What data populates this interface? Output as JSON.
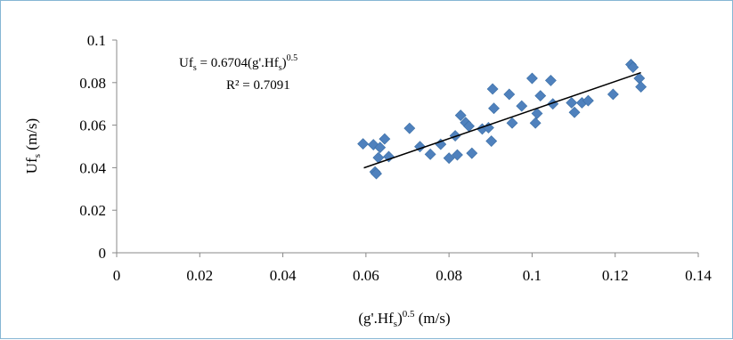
{
  "chart_data": {
    "type": "scatter",
    "title": "",
    "xlabel": "(g'.Hf",
    "xlabel_sub": "s",
    "xlabel_sup": "0.5",
    "xlabel_tail": " (m/s)",
    "ylabel": "Uf",
    "ylabel_sub": "s",
    "ylabel_tail": " (m/s)",
    "xlim": [
      0,
      0.14
    ],
    "ylim": [
      0,
      0.1
    ],
    "xticks": [
      "0",
      "0.02",
      "0.04",
      "0.06",
      "0.08",
      "0.1",
      "0.12",
      "0.14"
    ],
    "yticks": [
      "0",
      "0.02",
      "0.04",
      "0.06",
      "0.08",
      "0.1"
    ],
    "xtick_values": [
      0,
      0.02,
      0.04,
      0.06,
      0.08,
      0.1,
      0.12,
      0.14
    ],
    "ytick_values": [
      0,
      0.02,
      0.04,
      0.06,
      0.08,
      0.1
    ],
    "grid": false,
    "marker_color": "#4f81bd",
    "trendline_color": "#000000",
    "equation": {
      "prefix": "Uf",
      "sub1": "s",
      "middle": " = 0.6704(g'.Hf",
      "sub2": "s",
      "close": ")",
      "sup": "0.5"
    },
    "r_squared": "R² = 0.7091",
    "trendline": {
      "x": [
        0.0595,
        0.1262
      ],
      "y": [
        0.0399,
        0.0847
      ]
    },
    "series": [
      {
        "points": [
          [
            0.0593,
            0.0512
          ],
          [
            0.0618,
            0.0508
          ],
          [
            0.0622,
            0.038
          ],
          [
            0.0625,
            0.0372
          ],
          [
            0.063,
            0.0447
          ],
          [
            0.0634,
            0.0495
          ],
          [
            0.0645,
            0.0535
          ],
          [
            0.0655,
            0.0452
          ],
          [
            0.0705,
            0.0585
          ],
          [
            0.073,
            0.0499
          ],
          [
            0.0755,
            0.0463
          ],
          [
            0.078,
            0.051
          ],
          [
            0.08,
            0.0445
          ],
          [
            0.0815,
            0.055
          ],
          [
            0.082,
            0.046
          ],
          [
            0.0828,
            0.0646
          ],
          [
            0.084,
            0.0612
          ],
          [
            0.0848,
            0.0595
          ],
          [
            0.0855,
            0.0468
          ],
          [
            0.088,
            0.0582
          ],
          [
            0.0895,
            0.0588
          ],
          [
            0.0902,
            0.0525
          ],
          [
            0.0905,
            0.077
          ],
          [
            0.0908,
            0.0679
          ],
          [
            0.0945,
            0.0745
          ],
          [
            0.0952,
            0.061
          ],
          [
            0.0975,
            0.069
          ],
          [
            0.1,
            0.082
          ],
          [
            0.1008,
            0.061
          ],
          [
            0.1012,
            0.0655
          ],
          [
            0.102,
            0.0738
          ],
          [
            0.1045,
            0.081
          ],
          [
            0.105,
            0.07
          ],
          [
            0.1095,
            0.0705
          ],
          [
            0.1102,
            0.066
          ],
          [
            0.112,
            0.0705
          ],
          [
            0.1135,
            0.0715
          ],
          [
            0.1195,
            0.0745
          ],
          [
            0.1238,
            0.0885
          ],
          [
            0.1243,
            0.0872
          ],
          [
            0.1258,
            0.082
          ],
          [
            0.1262,
            0.078
          ]
        ]
      }
    ]
  }
}
